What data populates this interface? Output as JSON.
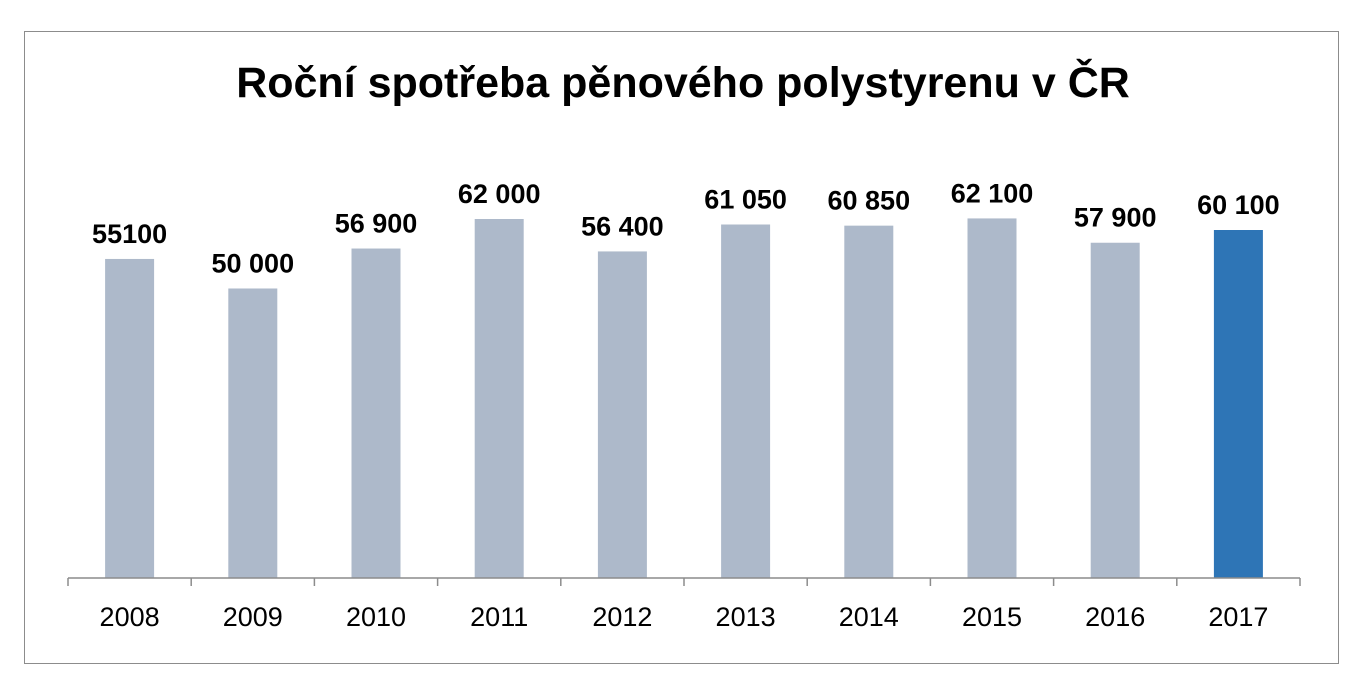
{
  "chart_data": {
    "type": "bar",
    "title": "Roční spotřeba pěnového polystyrenu v ČR",
    "xlabel": "",
    "ylabel": "",
    "categories": [
      "2008",
      "2009",
      "2010",
      "2011",
      "2012",
      "2013",
      "2014",
      "2015",
      "2016",
      "2017"
    ],
    "values": [
      55100,
      50000,
      56900,
      62000,
      56400,
      61050,
      60850,
      62100,
      57900,
      60100
    ],
    "value_labels": [
      "55100",
      "50 000",
      "56 900",
      "62 000",
      "56 400",
      "61 050",
      "60 850",
      "62 100",
      "57 900",
      "60 100"
    ],
    "ylim": [
      0,
      75000
    ],
    "grid": false,
    "legend": "none",
    "bar_colors": [
      "#adb9ca",
      "#adb9ca",
      "#adb9ca",
      "#adb9ca",
      "#adb9ca",
      "#adb9ca",
      "#adb9ca",
      "#adb9ca",
      "#adb9ca",
      "#2e75b6"
    ],
    "highlighted_category": "2017"
  }
}
